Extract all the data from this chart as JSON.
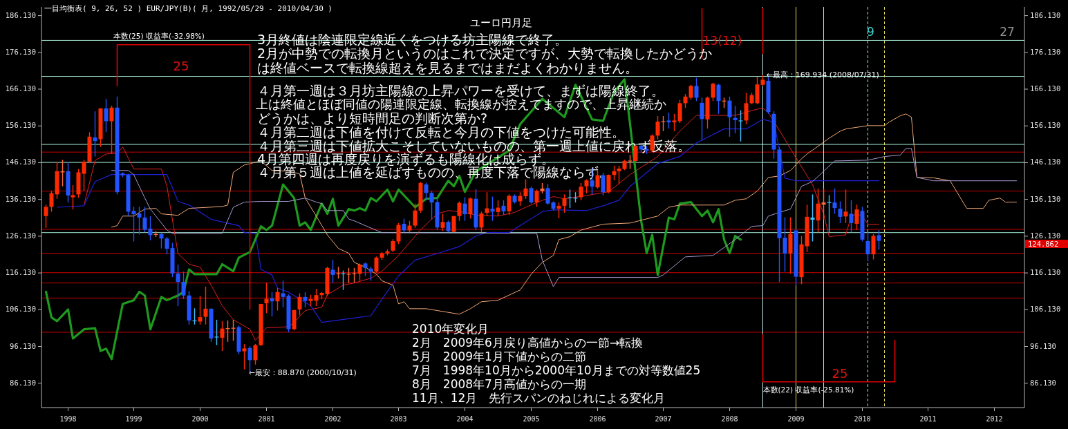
{
  "chart_data": {
    "type": "candlestick",
    "title": "一目均衡表( 9, 26, 52 )  EUR/JPY(B)( 月, 1992/05/29 - 2010/04/30 )",
    "subtitle": "ユーロ円月足",
    "x": [
      "1997-09",
      "1997-10",
      "1997-11",
      "1997-12",
      "1998-01",
      "1998-02",
      "1998-03",
      "1998-04",
      "1998-05",
      "1998-06",
      "1998-07",
      "1998-08",
      "1998-09",
      "1998-10",
      "1998-11",
      "1998-12",
      "1999-01",
      "1999-02",
      "1999-03",
      "1999-04",
      "1999-05",
      "1999-06",
      "1999-07",
      "1999-08",
      "1999-09",
      "1999-10",
      "1999-11",
      "1999-12",
      "2000-01",
      "2000-02",
      "2000-03",
      "2000-04",
      "2000-05",
      "2000-06",
      "2000-07",
      "2000-08",
      "2000-09",
      "2000-10",
      "2000-11",
      "2000-12",
      "2001-01",
      "2001-02",
      "2001-03",
      "2001-04",
      "2001-05",
      "2001-06",
      "2001-07",
      "2001-08",
      "2001-09",
      "2001-10",
      "2001-11",
      "2001-12",
      "2002-01",
      "2002-02",
      "2002-03",
      "2002-04",
      "2002-05",
      "2002-06",
      "2002-07",
      "2002-08",
      "2002-09",
      "2002-10",
      "2002-11",
      "2002-12",
      "2003-01",
      "2003-02",
      "2003-03",
      "2003-04",
      "2003-05",
      "2003-06",
      "2003-07",
      "2003-08",
      "2003-09",
      "2003-10",
      "2003-11",
      "2003-12",
      "2004-01",
      "2004-02",
      "2004-03",
      "2004-04",
      "2004-05",
      "2004-06",
      "2004-07",
      "2004-08",
      "2004-09",
      "2004-10",
      "2004-11",
      "2004-12",
      "2005-01",
      "2005-02",
      "2005-03",
      "2005-04",
      "2005-05",
      "2005-06",
      "2005-07",
      "2005-08",
      "2005-09",
      "2005-10",
      "2005-11",
      "2005-12",
      "2006-01",
      "2006-02",
      "2006-03",
      "2006-04",
      "2006-05",
      "2006-06",
      "2006-07",
      "2006-08",
      "2006-09",
      "2006-10",
      "2006-11",
      "2006-12",
      "2007-01",
      "2007-02",
      "2007-03",
      "2007-04",
      "2007-05",
      "2007-06",
      "2007-07",
      "2007-08",
      "2007-09",
      "2007-10",
      "2007-11",
      "2007-12",
      "2008-01",
      "2008-02",
      "2008-03",
      "2008-04",
      "2008-05",
      "2008-06",
      "2008-07",
      "2008-08",
      "2008-09",
      "2008-10",
      "2008-11",
      "2008-12",
      "2009-01",
      "2009-02",
      "2009-03",
      "2009-04",
      "2009-05",
      "2009-06",
      "2009-07",
      "2009-08",
      "2009-09",
      "2009-10",
      "2009-11",
      "2009-12",
      "2010-01",
      "2010-02",
      "2010-03",
      "2010-04"
    ],
    "ohlc": [
      [
        131.6,
        134.7,
        128.4,
        134.1
      ],
      [
        134.1,
        138.4,
        132.8,
        137.8
      ],
      [
        137.5,
        146.3,
        136.3,
        143.8
      ],
      [
        143.5,
        146.9,
        139.7,
        143.8
      ],
      [
        143.8,
        146.3,
        135.3,
        137.2
      ],
      [
        136.7,
        140.0,
        133.4,
        137.3
      ],
      [
        137.5,
        144.4,
        136.6,
        143.5
      ],
      [
        143.1,
        146.9,
        138.5,
        146.4
      ],
      [
        146.4,
        154.4,
        146.0,
        153.2
      ],
      [
        153.0,
        160.1,
        147.8,
        152.0
      ],
      [
        152.5,
        160.9,
        150.4,
        160.9
      ],
      [
        160.9,
        163.5,
        154.4,
        157.4
      ],
      [
        157.4,
        161.6,
        148.5,
        161.1
      ],
      [
        161.1,
        164.1,
        137.5,
        138.1
      ],
      [
        143.2,
        143.5,
        142.2,
        142.7
      ],
      [
        142.8,
        143.1,
        131.6,
        132.8
      ],
      [
        133.0,
        134.1,
        124.7,
        132.1
      ],
      [
        132.3,
        134.1,
        126.6,
        131.2
      ],
      [
        131.2,
        134.1,
        127.2,
        127.9
      ],
      [
        128.2,
        131.6,
        125.0,
        126.4
      ],
      [
        126.6,
        127.5,
        125.9,
        126.7
      ],
      [
        126.7,
        127.1,
        122.8,
        125.5
      ],
      [
        125.5,
        125.9,
        121.2,
        122.7
      ],
      [
        122.9,
        124.3,
        115.0,
        116.0
      ],
      [
        116.0,
        118.4,
        107.1,
        113.7
      ],
      [
        113.7,
        116.5,
        109.0,
        110.0
      ],
      [
        110.0,
        111.2,
        102.1,
        103.2
      ],
      [
        103.2,
        106.5,
        102.1,
        103.1
      ],
      [
        102.9,
        109.9,
        102.1,
        104.1
      ],
      [
        104.2,
        112.4,
        102.1,
        106.4
      ],
      [
        106.4,
        106.5,
        97.4,
        98.3
      ],
      [
        98.8,
        103.4,
        96.5,
        98.7
      ],
      [
        98.5,
        103.0,
        94.9,
        101.0
      ],
      [
        101.0,
        103.2,
        97.4,
        101.1
      ],
      [
        101.1,
        103.4,
        97.7,
        101.2
      ],
      [
        101.4,
        101.8,
        94.0,
        94.7
      ],
      [
        94.8,
        96.8,
        89.9,
        95.6
      ],
      [
        95.7,
        96.2,
        88.87,
        92.4
      ],
      [
        92.4,
        96.8,
        91.2,
        96.5
      ],
      [
        96.5,
        107.7,
        96.2,
        107.7
      ],
      [
        107.9,
        113.4,
        105.2,
        109.1
      ],
      [
        109.2,
        110.9,
        104.3,
        108.4
      ],
      [
        108.4,
        112.1,
        105.9,
        110.9
      ],
      [
        110.6,
        114.0,
        106.8,
        109.6
      ],
      [
        109.9,
        110.3,
        100.0,
        100.85
      ],
      [
        100.85,
        106.2,
        100.5,
        106.0
      ],
      [
        106.2,
        110.6,
        104.6,
        109.6
      ],
      [
        109.6,
        110.9,
        106.8,
        108.5
      ],
      [
        108.5,
        110.2,
        107.1,
        109.0
      ],
      [
        108.6,
        111.8,
        107.1,
        110.1
      ],
      [
        110.1,
        110.9,
        109.0,
        110.7
      ],
      [
        110.4,
        117.8,
        109.9,
        117.5
      ],
      [
        117.0,
        119.7,
        113.4,
        115.6
      ],
      [
        115.8,
        117.8,
        114.6,
        116.0
      ],
      [
        116.0,
        116.8,
        111.5,
        115.9
      ],
      [
        115.8,
        117.5,
        113.4,
        115.9
      ],
      [
        115.9,
        117.5,
        113.4,
        116.0
      ],
      [
        115.9,
        118.7,
        114.0,
        118.4
      ],
      [
        118.7,
        119.0,
        115.3,
        117.5
      ],
      [
        117.3,
        117.8,
        114.0,
        116.5
      ],
      [
        116.5,
        120.6,
        116.2,
        120.3
      ],
      [
        120.3,
        121.8,
        119.7,
        121.4
      ],
      [
        121.4,
        122.5,
        120.9,
        122.0
      ],
      [
        122.2,
        125.3,
        121.8,
        124.8
      ],
      [
        124.7,
        129.7,
        124.0,
        129.2
      ],
      [
        129.5,
        130.9,
        127.2,
        127.7
      ],
      [
        127.7,
        130.3,
        127.2,
        129.0
      ],
      [
        129.0,
        135.0,
        128.4,
        133.1
      ],
      [
        133.1,
        140.9,
        132.5,
        140.6
      ],
      [
        140.2,
        140.7,
        135.9,
        137.9
      ],
      [
        137.9,
        138.4,
        130.6,
        135.3
      ],
      [
        135.4,
        136.7,
        127.8,
        128.5
      ],
      [
        128.4,
        132.2,
        127.5,
        130.0
      ],
      [
        130.0,
        130.4,
        127.2,
        127.5
      ],
      [
        127.3,
        131.6,
        127.2,
        131.6
      ],
      [
        131.6,
        135.6,
        130.3,
        135.2
      ],
      [
        135.0,
        136.7,
        130.3,
        132.1
      ],
      [
        132.1,
        136.6,
        130.9,
        136.4
      ],
      [
        136.3,
        138.9,
        127.8,
        128.5
      ],
      [
        128.5,
        132.8,
        127.2,
        132.3
      ],
      [
        132.5,
        138.1,
        131.6,
        133.7
      ],
      [
        133.6,
        136.9,
        130.3,
        132.8
      ],
      [
        132.7,
        135.9,
        131.6,
        133.9
      ],
      [
        134.4,
        135.9,
        131.9,
        132.9
      ],
      [
        132.9,
        137.5,
        131.9,
        137.1
      ],
      [
        137.1,
        137.5,
        135.0,
        135.4
      ],
      [
        135.6,
        138.1,
        134.4,
        137.1
      ],
      [
        137.0,
        141.6,
        136.3,
        139.1
      ],
      [
        139.2,
        139.6,
        135.0,
        135.3
      ],
      [
        135.3,
        138.8,
        134.1,
        138.4
      ],
      [
        138.4,
        140.6,
        137.8,
        139.1
      ],
      [
        139.2,
        140.3,
        134.7,
        135.0
      ],
      [
        135.3,
        135.6,
        133.1,
        133.6
      ],
      [
        133.6,
        135.3,
        131.0,
        134.4
      ],
      [
        134.4,
        137.5,
        132.5,
        136.4
      ],
      [
        136.7,
        138.8,
        133.8,
        136.6
      ],
      [
        136.5,
        138.1,
        135.3,
        136.6
      ],
      [
        136.7,
        140.6,
        135.9,
        139.6
      ],
      [
        139.7,
        141.6,
        137.8,
        141.3
      ],
      [
        141.3,
        144.7,
        137.5,
        139.6
      ],
      [
        139.4,
        144.1,
        139.1,
        142.7
      ],
      [
        142.7,
        143.4,
        137.2,
        138.1
      ],
      [
        138.1,
        142.9,
        137.8,
        142.8
      ],
      [
        142.8,
        145.3,
        141.3,
        143.8
      ],
      [
        143.8,
        145.3,
        140.3,
        144.5
      ],
      [
        144.4,
        146.9,
        144.1,
        146.6
      ],
      [
        146.6,
        148.2,
        144.4,
        146.7
      ],
      [
        146.6,
        151.0,
        146.0,
        150.7
      ],
      [
        150.7,
        151.0,
        148.8,
        149.7
      ],
      [
        149.8,
        150.7,
        148.5,
        149.4
      ],
      [
        149.4,
        153.8,
        149.1,
        153.5
      ],
      [
        153.5,
        158.8,
        152.5,
        157.3
      ],
      [
        157.3,
        158.8,
        154.7,
        157.4
      ],
      [
        157.6,
        159.7,
        155.4,
        157.1
      ],
      [
        157.1,
        159.4,
        154.7,
        157.6
      ],
      [
        157.4,
        163.2,
        156.9,
        162.3
      ],
      [
        162.3,
        164.8,
        161.0,
        164.1
      ],
      [
        163.8,
        167.3,
        163.2,
        167.0
      ],
      [
        167.0,
        169.2,
        162.9,
        163.8
      ],
      [
        162.4,
        163.8,
        152.2,
        158.0
      ],
      [
        157.9,
        164.1,
        155.4,
        163.8
      ],
      [
        163.8,
        167.9,
        162.9,
        167.6
      ],
      [
        167.3,
        167.6,
        159.4,
        162.9
      ],
      [
        162.9,
        163.8,
        161.0,
        163.0
      ],
      [
        163.0,
        164.1,
        153.2,
        158.5
      ],
      [
        158.3,
        161.6,
        154.1,
        157.7
      ],
      [
        157.6,
        160.4,
        151.9,
        157.5
      ],
      [
        157.6,
        165.1,
        156.6,
        162.3
      ],
      [
        162.3,
        165.1,
        162.0,
        164.5
      ],
      [
        162.3,
        169.5,
        162.0,
        167.4
      ],
      [
        167.3,
        169.934,
        167.0,
        168.7
      ],
      [
        168.4,
        169.5,
        159.4,
        159.9
      ],
      [
        159.4,
        160.1,
        147.2,
        149.7
      ],
      [
        149.7,
        150.4,
        113.7,
        125.6
      ],
      [
        125.7,
        131.3,
        116.5,
        121.4
      ],
      [
        121.4,
        131.3,
        115.9,
        126.7
      ],
      [
        127.7,
        128.1,
        112.8,
        115.1
      ],
      [
        115.0,
        126.2,
        113.1,
        123.9
      ],
      [
        123.4,
        134.7,
        121.8,
        131.4
      ],
      [
        131.2,
        137.5,
        124.7,
        130.6
      ],
      [
        130.4,
        139.1,
        127.2,
        135.0
      ],
      [
        134.7,
        139.1,
        130.6,
        135.3
      ],
      [
        135.4,
        137.3,
        127.2,
        135.3
      ],
      [
        135.3,
        139.1,
        132.2,
        133.8
      ],
      [
        133.6,
        135.6,
        129.7,
        131.4
      ],
      [
        131.5,
        138.8,
        129.7,
        132.8
      ],
      [
        132.2,
        135.9,
        127.2,
        129.7
      ],
      [
        129.5,
        134.7,
        127.8,
        133.4
      ],
      [
        133.0,
        134.1,
        124.7,
        125.2
      ],
      [
        124.8,
        127.2,
        119.3,
        121.2
      ],
      [
        121.2,
        126.7,
        119.8,
        126.2
      ],
      [
        126.4,
        127.8,
        122.5,
        124.862
      ]
    ],
    "colors": [
      "#ff2a00",
      "#ff2a00",
      "#ff2a00",
      "#ff6a3a",
      "#2255ff",
      "#ff2a00",
      "#ff2a00",
      "#ff2a00",
      "#ff2a00",
      "#2255ff",
      "#ff2a00",
      "#2255ff",
      "#ff2a00",
      "#2255ff",
      "#2255ff",
      "#2255ff",
      "#2255ff",
      "#2255ff",
      "#2255ff",
      "#2255ff",
      "#ff6a3a",
      "#2255ff",
      "#2255ff",
      "#2255ff",
      "#2255ff",
      "#2255ff",
      "#2255ff",
      "#40c0ff",
      "#ff2a00",
      "#ff2a00",
      "#2255ff",
      "#40c0ff",
      "#ff2a00",
      "#ff6a3a",
      "#ff6a3a",
      "#2255ff",
      "#ff2a00",
      "#2255ff",
      "#ff2a00",
      "#ff2a00",
      "#ff2a00",
      "#2255ff",
      "#ff2a00",
      "#2255ff",
      "#2255ff",
      "#ff2a00",
      "#ff2a00",
      "#2255ff",
      "#ff2a00",
      "#ff2a00",
      "#ff2a00",
      "#ff2a00",
      "#2255ff",
      "#ff6a3a",
      "#40c0ff",
      "#ff6a3a",
      "#ff6a3a",
      "#ff2a00",
      "#2255ff",
      "#2255ff",
      "#ff2a00",
      "#ff2a00",
      "#ff2a00",
      "#ff2a00",
      "#ff2a00",
      "#2255ff",
      "#ff2a00",
      "#ff2a00",
      "#ff2a00",
      "#2255ff",
      "#2255ff",
      "#2255ff",
      "#ff2a00",
      "#2255ff",
      "#ff2a00",
      "#ff2a00",
      "#2255ff",
      "#ff2a00",
      "#2255ff",
      "#ff2a00",
      "#ff2a00",
      "#2255ff",
      "#ff2a00",
      "#2255ff",
      "#ff2a00",
      "#2255ff",
      "#ff2a00",
      "#ff2a00",
      "#2255ff",
      "#ff2a00",
      "#ff6a3a",
      "#2255ff",
      "#2255ff",
      "#ff2a00",
      "#ff2a00",
      "#40c0ff",
      "#40c0ff",
      "#ff2a00",
      "#ff2a00",
      "#2255ff",
      "#ff2a00",
      "#2255ff",
      "#ff2a00",
      "#ff2a00",
      "#ff2a00",
      "#ff2a00",
      "#ff6a3a",
      "#ff2a00",
      "#2255ff",
      "#2255ff",
      "#ff2a00",
      "#ff2a00",
      "#ff6a3a",
      "#2255ff",
      "#ff2a00",
      "#ff2a00",
      "#ff2a00",
      "#ff2a00",
      "#2255ff",
      "#2255ff",
      "#ff2a00",
      "#ff2a00",
      "#2255ff",
      "#ff6a3a",
      "#2255ff",
      "#2255ff",
      "#40c0ff",
      "#ff2a00",
      "#ff2a00",
      "#ff2a00",
      "#ff2a00",
      "#2255ff",
      "#2255ff",
      "#2255ff",
      "#2255ff",
      "#ff2a00",
      "#2255ff",
      "#ff2a00",
      "#ff2a00",
      "#40c0ff",
      "#ff2a00",
      "#ff6a3a",
      "#40c0ff",
      "#2255ff",
      "#2255ff",
      "#ff2a00",
      "#2255ff",
      "#ff2a00",
      "#2255ff",
      "#2255ff",
      "#ff2a00",
      "#2255ff"
    ],
    "series": [
      {
        "type": "line",
        "color": "#e02020",
        "x": [
          "1998-04",
          "1998-06",
          "1998-08",
          "1998-10",
          "1998-11",
          "1999-01",
          "1999-06",
          "1999-07",
          "1999-09",
          "1999-11",
          "2000-01",
          "2000-03",
          "2000-05",
          "2000-07",
          "2000-10",
          "2000-11",
          "2001-01",
          "2001-05",
          "2001-06",
          "2001-08",
          "2001-11",
          "2001-12",
          "2002-03",
          "2002-05",
          "2002-08",
          "2002-10",
          "2003-01",
          "2003-05",
          "2003-08",
          "2003-10",
          "2004-01",
          "2004-03",
          "2004-07",
          "2004-10",
          "2004-12",
          "2005-03",
          "2005-05",
          "2005-07",
          "2005-11",
          "2006-03",
          "2006-07",
          "2006-12",
          "2007-04",
          "2007-07",
          "2007-12",
          "2008-02",
          "2008-06",
          "2008-07",
          "2008-08",
          "2009-04",
          "2009-06",
          "2009-07",
          "2009-10",
          "2009-11",
          "2009-12",
          "2010-01",
          "2010-02",
          "2010-04"
        ],
        "values": [
          134.6,
          146.7,
          148.5,
          148.7,
          150.4,
          144.4,
          144.4,
          139.7,
          121.4,
          118.5,
          117.7,
          112.8,
          107.2,
          103.4,
          100.8,
          97.8,
          101.2,
          101.5,
          102.7,
          105.9,
          106.8,
          110.2,
          112.8,
          113.4,
          114.7,
          116.6,
          120.9,
          127.9,
          132.2,
          133.1,
          132.6,
          131.8,
          131.6,
          132.6,
          134.0,
          135.9,
          136.9,
          136.3,
          137.2,
          138.2,
          142.9,
          147.8,
          154.7,
          159.0,
          159.0,
          159.0,
          160.7,
          160.9,
          159.8,
          140.1,
          132.2,
          126.0,
          126.5,
          131.6,
          132.2,
          131.6,
          129.4,
          129.4
        ]
      },
      {
        "type": "line",
        "color": "#2020d8",
        "x": [
          "1997-11",
          "1998-04",
          "1998-06",
          "1998-09",
          "1999-07",
          "1999-09",
          "1999-11",
          "2000-03",
          "2000-08",
          "2000-09",
          "2000-11",
          "2000-12",
          "2001-02",
          "2001-03",
          "2001-05",
          "2001-09",
          "2001-11",
          "2002-08",
          "2002-10",
          "2003-01",
          "2003-04",
          "2003-08",
          "2003-12",
          "2004-03",
          "2004-05",
          "2004-09",
          "2004-11",
          "2005-03",
          "2005-05",
          "2005-11",
          "2006-02",
          "2006-05",
          "2006-07",
          "2006-12",
          "2007-04",
          "2007-07",
          "2007-12",
          "2008-04",
          "2008-07",
          "2008-09",
          "2008-11",
          "2009-01",
          "2010-04"
        ],
        "values": [
          134.0,
          134.4,
          141.0,
          142.9,
          142.9,
          135.6,
          134.6,
          130.7,
          129.0,
          127.1,
          126.9,
          117.1,
          115.6,
          112.0,
          110.9,
          107.2,
          102.7,
          104.5,
          109.0,
          115.3,
          119.6,
          121.4,
          123.3,
          126.2,
          127.1,
          127.1,
          129.0,
          132.8,
          133.3,
          133.1,
          134.4,
          135.9,
          139.7,
          145.9,
          147.8,
          151.5,
          155.3,
          155.3,
          157.9,
          157.2,
          141.9,
          141.2,
          141.2
        ]
      },
      {
        "type": "line",
        "color": "#1e9a1e",
        "x": [
          "1997-09",
          "1997-10",
          "1997-11",
          "1998-01",
          "1998-02",
          "1998-04",
          "1998-06",
          "1998-07",
          "1998-08",
          "1998-09",
          "1998-11",
          "1999-01",
          "1999-02",
          "1999-03",
          "1999-04",
          "1999-06",
          "1999-07",
          "1999-09",
          "1999-10",
          "1999-11",
          "1999-12",
          "2000-02",
          "2000-04",
          "2000-05",
          "2000-07",
          "2000-08",
          "2000-10",
          "2000-12",
          "2001-01",
          "2001-02",
          "2001-04",
          "2001-06",
          "2001-07",
          "2001-08",
          "2001-09",
          "2001-11",
          "2001-12",
          "2002-01",
          "2002-02",
          "2002-04",
          "2002-05",
          "2002-06",
          "2002-07",
          "2002-08",
          "2002-09",
          "2002-11",
          "2002-12",
          "2003-01",
          "2003-04",
          "2003-06",
          "2003-08",
          "2003-10",
          "2003-11",
          "2003-12",
          "2004-01",
          "2004-03",
          "2004-04",
          "2004-06",
          "2004-09",
          "2004-11",
          "2005-03",
          "2005-07",
          "2005-09",
          "2005-12",
          "2006-02",
          "2006-04",
          "2006-06",
          "2006-07",
          "2006-09",
          "2006-10",
          "2006-11",
          "2006-12",
          "2007-02",
          "2007-03",
          "2007-04",
          "2007-06",
          "2007-08",
          "2007-09",
          "2007-10",
          "2007-11",
          "2007-12",
          "2008-01",
          "2008-02",
          "2008-03"
        ],
        "values": [
          111.0,
          104.0,
          103.0,
          106.2,
          98.3,
          100.8,
          101.1,
          94.9,
          95.5,
          92.7,
          107.7,
          108.7,
          111.0,
          110.0,
          100.8,
          109.6,
          108.7,
          110.0,
          111.0,
          117.1,
          115.8,
          115.8,
          115.8,
          118.5,
          116.6,
          120.3,
          121.8,
          128.8,
          127.8,
          129.0,
          140.2,
          136.5,
          129.0,
          129.9,
          127.8,
          135.0,
          132.2,
          136.3,
          129.0,
          133.5,
          133.1,
          133.7,
          133.1,
          136.5,
          135.6,
          138.8,
          135.6,
          138.8,
          134.0,
          136.3,
          136.5,
          141.2,
          139.7,
          142.5,
          138.2,
          143.8,
          144.7,
          146.6,
          149.4,
          156.6,
          163.5,
          158.5,
          167.3,
          157.9,
          157.5,
          165.4,
          168.8,
          156.6,
          130.3,
          121.5,
          126.5,
          115.6,
          131.2,
          130.7,
          135.0,
          135.4,
          131.6,
          133.1,
          129.9,
          133.5,
          125.2,
          121.5,
          126.2,
          125.2
        ]
      },
      {
        "type": "line",
        "color": "#f0a878",
        "x": [
          "1998-09",
          "1998-10",
          "1998-11",
          "1999-01",
          "1999-03",
          "1999-05",
          "1999-06",
          "1999-09",
          "1999-11",
          "2000-05",
          "2000-06",
          "2000-07",
          "2000-09",
          "2000-12",
          "2001-02",
          "2001-05",
          "2001-07",
          "2001-08",
          "2001-10",
          "2001-12",
          "2002-02",
          "2002-04",
          "2002-05",
          "2002-07",
          "2002-09",
          "2002-10",
          "2002-12",
          "2003-01",
          "2003-02",
          "2003-03",
          "2003-06",
          "2003-08",
          "2003-12",
          "2004-02",
          "2004-04",
          "2004-07",
          "2004-11",
          "2005-01",
          "2005-03",
          "2005-05",
          "2005-06",
          "2005-08",
          "2005-10",
          "2006-02",
          "2006-07",
          "2006-12",
          "2007-02",
          "2007-04",
          "2007-12",
          "2008-02",
          "2008-04",
          "2008-06",
          "2008-08",
          "2008-10",
          "2008-12",
          "2009-02",
          "2009-03",
          "2009-05",
          "2009-07",
          "2009-09",
          "2009-10",
          "2010-02",
          "2010-05",
          "2010-06",
          "2010-08",
          "2010-09",
          "2010-10",
          "2010-11",
          "2011-02",
          "2011-05",
          "2011-08",
          "2011-11",
          "2011-12",
          "2012-02",
          "2012-03",
          "2012-05"
        ],
        "values": [
          128.6,
          129.0,
          131.6,
          131.6,
          133.5,
          133.7,
          132.2,
          131.8,
          133.7,
          134.2,
          134.6,
          143.5,
          145.5,
          146.6,
          144.0,
          143.8,
          143.1,
          136.5,
          131.6,
          126.5,
          122.8,
          121.5,
          119.0,
          117.7,
          115.8,
          114.0,
          112.8,
          107.7,
          108.3,
          106.4,
          106.4,
          105.9,
          104.9,
          106.4,
          108.3,
          108.7,
          111.5,
          115.8,
          119.0,
          120.9,
          125.2,
          126.0,
          127.8,
          129.4,
          129.7,
          131.6,
          134.0,
          134.6,
          134.6,
          135.9,
          136.3,
          138.4,
          142.1,
          142.5,
          144.0,
          147.2,
          148.5,
          150.6,
          152.8,
          154.7,
          155.3,
          156.2,
          156.2,
          157.2,
          158.9,
          159.4,
          158.5,
          142.1,
          142.0,
          141.2,
          133.7,
          133.7,
          135.9,
          136.5,
          135.4,
          135.4
        ]
      },
      {
        "type": "line",
        "color": "#a898d0",
        "x": [
          "1998-09",
          "1998-12",
          "1999-01",
          "1999-03",
          "1999-04",
          "1999-07",
          "1999-08",
          "2000-05",
          "2000-07",
          "2000-09",
          "2000-12",
          "2001-05",
          "2001-08",
          "2001-10",
          "2001-11",
          "2001-12",
          "2002-03",
          "2002-04",
          "2002-05",
          "2002-07",
          "2002-10",
          "2005-02",
          "2005-03",
          "2005-05",
          "2005-06",
          "2006-12",
          "2007-01",
          "2007-05",
          "2007-10",
          "2008-02",
          "2008-05",
          "2008-07",
          "2008-08",
          "2008-10",
          "2008-12",
          "2009-02",
          "2009-04",
          "2009-06",
          "2009-08",
          "2010-02",
          "2010-05",
          "2010-08",
          "2010-09",
          "2010-10",
          "2010-11",
          "2011-02",
          "2012-05"
        ],
        "values": [
          144.0,
          144.0,
          142.9,
          136.5,
          133.5,
          127.8,
          126.9,
          126.9,
          134.0,
          135.4,
          135.6,
          135.6,
          136.5,
          135.4,
          135.0,
          133.1,
          133.1,
          130.8,
          130.3,
          129.0,
          127.1,
          126.9,
          119.6,
          112.4,
          114.9,
          114.9,
          115.6,
          120.5,
          120.9,
          125.2,
          128.8,
          129.0,
          131.6,
          132.6,
          133.5,
          139.7,
          141.0,
          143.8,
          146.6,
          146.8,
          147.8,
          148.2,
          150.0,
          150.0,
          142.1,
          141.2,
          141.2
        ]
      },
      {
        "type": "line",
        "color": "#e00000",
        "x": [
          "1998-10",
          "1998-10",
          "2000-10",
          "2000-10"
        ],
        "values": [
          167.0,
          178.2,
          178.2,
          106.2
        ]
      },
      {
        "type": "line",
        "color": "#e00000",
        "x": [
          "2008-07",
          "2008-07",
          "2010-07",
          "2010-07"
        ],
        "values": [
          99.3,
          86.5,
          86.5,
          97.8
        ]
      },
      {
        "type": "line",
        "color": "#e00000",
        "x": [
          "2007-08",
          "2007-08"
        ],
        "values": [
          188.0,
          174.5
        ]
      },
      {
        "type": "line",
        "color": "#e00000",
        "x": [
          "2008-07",
          "2008-07"
        ],
        "values": [
          188.0,
          175.8
        ]
      }
    ],
    "ref_lines": [
      {
        "axis": "y",
        "value": 149.0,
        "color": "#c80000"
      },
      {
        "axis": "y",
        "value": 138.4,
        "color": "#c80000"
      },
      {
        "axis": "y",
        "value": 128.0,
        "color": "#c80000"
      },
      {
        "axis": "y",
        "value": 121.5,
        "color": "#c80000"
      },
      {
        "axis": "y",
        "value": 116.2,
        "color": "#c80000"
      },
      {
        "axis": "y",
        "value": 113.4,
        "color": "#c80000"
      },
      {
        "axis": "y",
        "value": 109.3,
        "color": "#c80000"
      },
      {
        "axis": "y",
        "value": 100.0,
        "color": "#c80000"
      },
      {
        "axis": "y",
        "value": 179.4,
        "color": "#a8f0d8"
      },
      {
        "axis": "y",
        "value": 169.6,
        "color": "#a8f0d8"
      },
      {
        "axis": "y",
        "value": 151.1,
        "color": "#a8f0d8"
      },
      {
        "axis": "y",
        "value": 146.2,
        "color": "#a8f0d8"
      },
      {
        "axis": "y",
        "value": 127.1,
        "color": "#a8f0d8"
      },
      {
        "axis": "x",
        "value": "2008-07",
        "color": "#c8f0f0"
      },
      {
        "axis": "x",
        "value": "2009-01",
        "color": "#e8e060"
      },
      {
        "axis": "x",
        "value": "2009-06",
        "color": "#a8f0d8"
      },
      {
        "axis": "x",
        "value": "2010-02",
        "color": "#a8f0d8",
        "line_style": "dashed"
      },
      {
        "axis": "x",
        "value": "2010-05",
        "color": "#e8e060",
        "line_style": "dashed"
      }
    ],
    "annotations": [
      "3月終値は陰連限定線近くをつける坊主陽線で終了。",
      "2月が中勢での転換月というのはこれで決定ですが、大勢で転換したかどうか",
      "は終値ベースで転換線超えを見るまではまだよくわかりません。",
      "４月第一週は３月坊主陽線の上昇パワーを受けて、まずは陽線終了。",
      "上は終値とほぼ同値の陽連限定線、転換線が控えてますので、上昇継続か",
      "どうかは、より短時間足の判断次第か?",
      "４月第二週は下値を付けて反転と今月の下値をつけた可能性。",
      "４月第三週は下値拡大こそしていないものの、第一週上値に戻れず反落。",
      "4月第四週は再度戻りを演ずるも陽線化は成らず。",
      "４月第５週は上値を延ばすものの、再度下落で陽線ならず。",
      "2010年変化月",
      "2月　2009年6月戻り高値からの一節→転換",
      "5月　2009年1月下値からの二節",
      "7月　1998年10月から2000年10月までの対等数値25",
      "8月　2008年7月高値からの一期",
      "11月、12月　先行スパンのねじれによる変化月",
      "25",
      "本数(25) 収益率(-32.98%)",
      {
        "text": "←最安：88.870 (2000/10/31)",
        "x": "2000-10",
        "y": 88.87
      },
      {
        "text": "←最高：169.934 (2008/07/31)",
        "x": "2008-07",
        "y": 169.934
      },
      "13(12)",
      {
        "text": "9",
        "x": "2010-02",
        "y": 181.6
      },
      "27",
      "25",
      {
        "text": "本数(22) 収益率(-25.81%)",
        "x": "2008-07",
        "y": 84.2
      },
      "124.862"
    ],
    "xlim": [
      "1997-08-25",
      "2012-07-01"
    ],
    "xticks": [
      {
        "value": "1998-01",
        "label": "1998"
      },
      {
        "value": "1999-01",
        "label": "1999"
      },
      {
        "value": "2000-01",
        "label": "2000"
      },
      {
        "value": "2001-01",
        "label": "2001"
      },
      {
        "value": "2002-01",
        "label": "2002"
      },
      {
        "value": "2003-01",
        "label": "2003"
      },
      {
        "value": "2004-01",
        "label": "2004"
      },
      {
        "value": "2005-01",
        "label": "2005"
      },
      {
        "value": "2006-01",
        "label": "2006"
      },
      {
        "value": "2007-01",
        "label": "2007"
      },
      {
        "value": "2008-01",
        "label": "2008"
      },
      {
        "value": "2009-01",
        "label": "2009"
      },
      {
        "value": "2010-01",
        "label": "2010"
      },
      {
        "value": "2011-01",
        "label": "2011"
      },
      {
        "value": "2012-01",
        "label": "2012"
      }
    ],
    "ylim": [
      79.5,
      188.5
    ],
    "yticks": [
      {
        "value": 86.13,
        "label": "86.130"
      },
      {
        "value": 96.13,
        "label": "96.130"
      },
      {
        "value": 106.13,
        "label": "106.130"
      },
      {
        "value": 116.13,
        "label": "116.130"
      },
      {
        "value": 126.13,
        "label": "126.130"
      },
      {
        "value": 136.13,
        "label": "136.130"
      },
      {
        "value": 146.13,
        "label": "146.130"
      },
      {
        "value": 156.13,
        "label": "156.130"
      },
      {
        "value": 166.13,
        "label": "166.130"
      },
      {
        "value": 176.13,
        "label": "176.130"
      },
      {
        "value": 186.13,
        "label": "186.130"
      }
    ],
    "y2lim": [
      79.5,
      188.5
    ],
    "y2ticks": [
      {
        "value": 86.13,
        "label": "86.130"
      },
      {
        "value": 96.13,
        "label": "96.130"
      },
      {
        "value": 106.13,
        "label": "106.130"
      },
      {
        "value": 116.13,
        "label": "116.130"
      },
      {
        "value": 126.13,
        "label": "126.130"
      },
      {
        "value": 136.13,
        "label": "136.130"
      },
      {
        "value": 146.13,
        "label": "146.130"
      },
      {
        "value": 156.13,
        "label": "156.130"
      },
      {
        "value": 166.13,
        "label": "166.130"
      },
      {
        "value": 176.13,
        "label": "176.130"
      },
      {
        "value": 186.13,
        "label": "186.130"
      }
    ]
  }
}
